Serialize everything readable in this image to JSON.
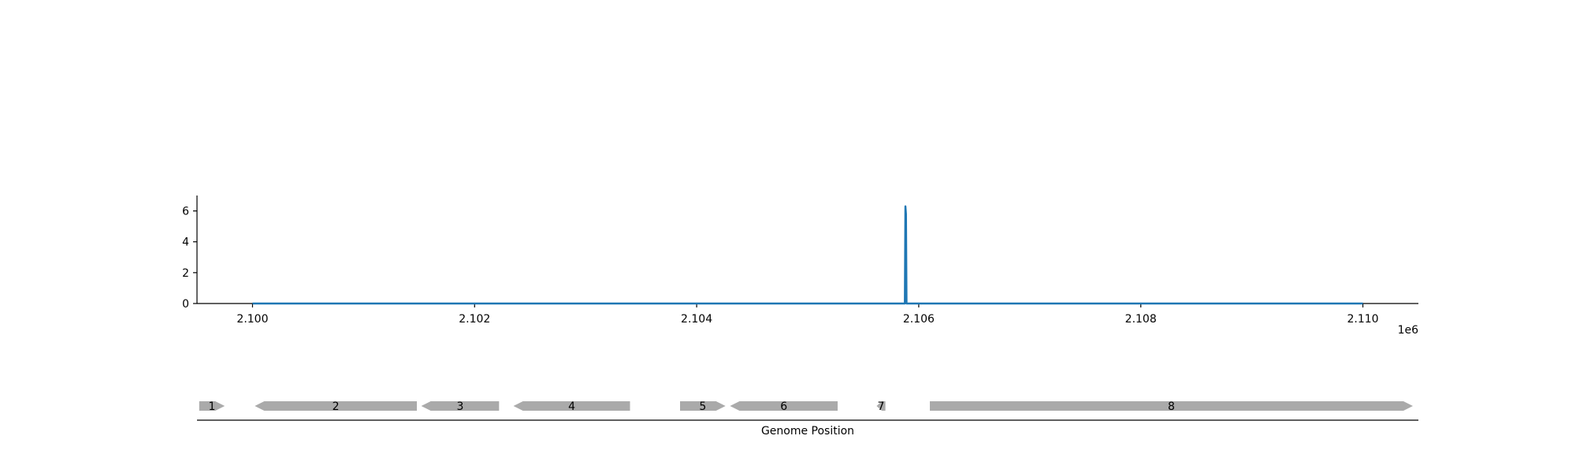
{
  "chart_data": {
    "type": "line",
    "title": "",
    "xlabel": "Genome Position",
    "ylabel": "",
    "x_offset_label": "1e6",
    "xlim": [
      2099500,
      2110500
    ],
    "ylim": [
      0,
      7
    ],
    "x_ticks": [
      2100000,
      2102000,
      2104000,
      2106000,
      2108000,
      2110000
    ],
    "x_tick_labels": [
      "2.100",
      "2.102",
      "2.104",
      "2.106",
      "2.108",
      "2.110"
    ],
    "y_ticks": [
      0,
      2,
      4,
      6
    ],
    "y_tick_labels": [
      "0",
      "2",
      "4",
      "6"
    ],
    "grid": false,
    "line_color": "#1f77b4",
    "series": [
      {
        "x": [
          2100000,
          2105870,
          2105875,
          2105880,
          2105885,
          2105890,
          2110000
        ],
        "y": [
          0,
          0,
          0,
          6.3,
          5.8,
          0,
          0
        ]
      }
    ],
    "genes": {
      "color": "#aaaaaa",
      "items": [
        {
          "label": "1",
          "start": 2099520,
          "end": 2099750,
          "strand": "+"
        },
        {
          "label": "2",
          "start": 2100020,
          "end": 2101480,
          "strand": "-"
        },
        {
          "label": "3",
          "start": 2101520,
          "end": 2102220,
          "strand": "-"
        },
        {
          "label": "4",
          "start": 2102350,
          "end": 2103400,
          "strand": "-"
        },
        {
          "label": "5",
          "start": 2103850,
          "end": 2104260,
          "strand": "+"
        },
        {
          "label": "6",
          "start": 2104300,
          "end": 2105270,
          "strand": "-"
        },
        {
          "label": "7",
          "start": 2105620,
          "end": 2105700,
          "strand": "-"
        },
        {
          "label": "8",
          "start": 2106100,
          "end": 2110450,
          "strand": "+"
        }
      ]
    }
  }
}
